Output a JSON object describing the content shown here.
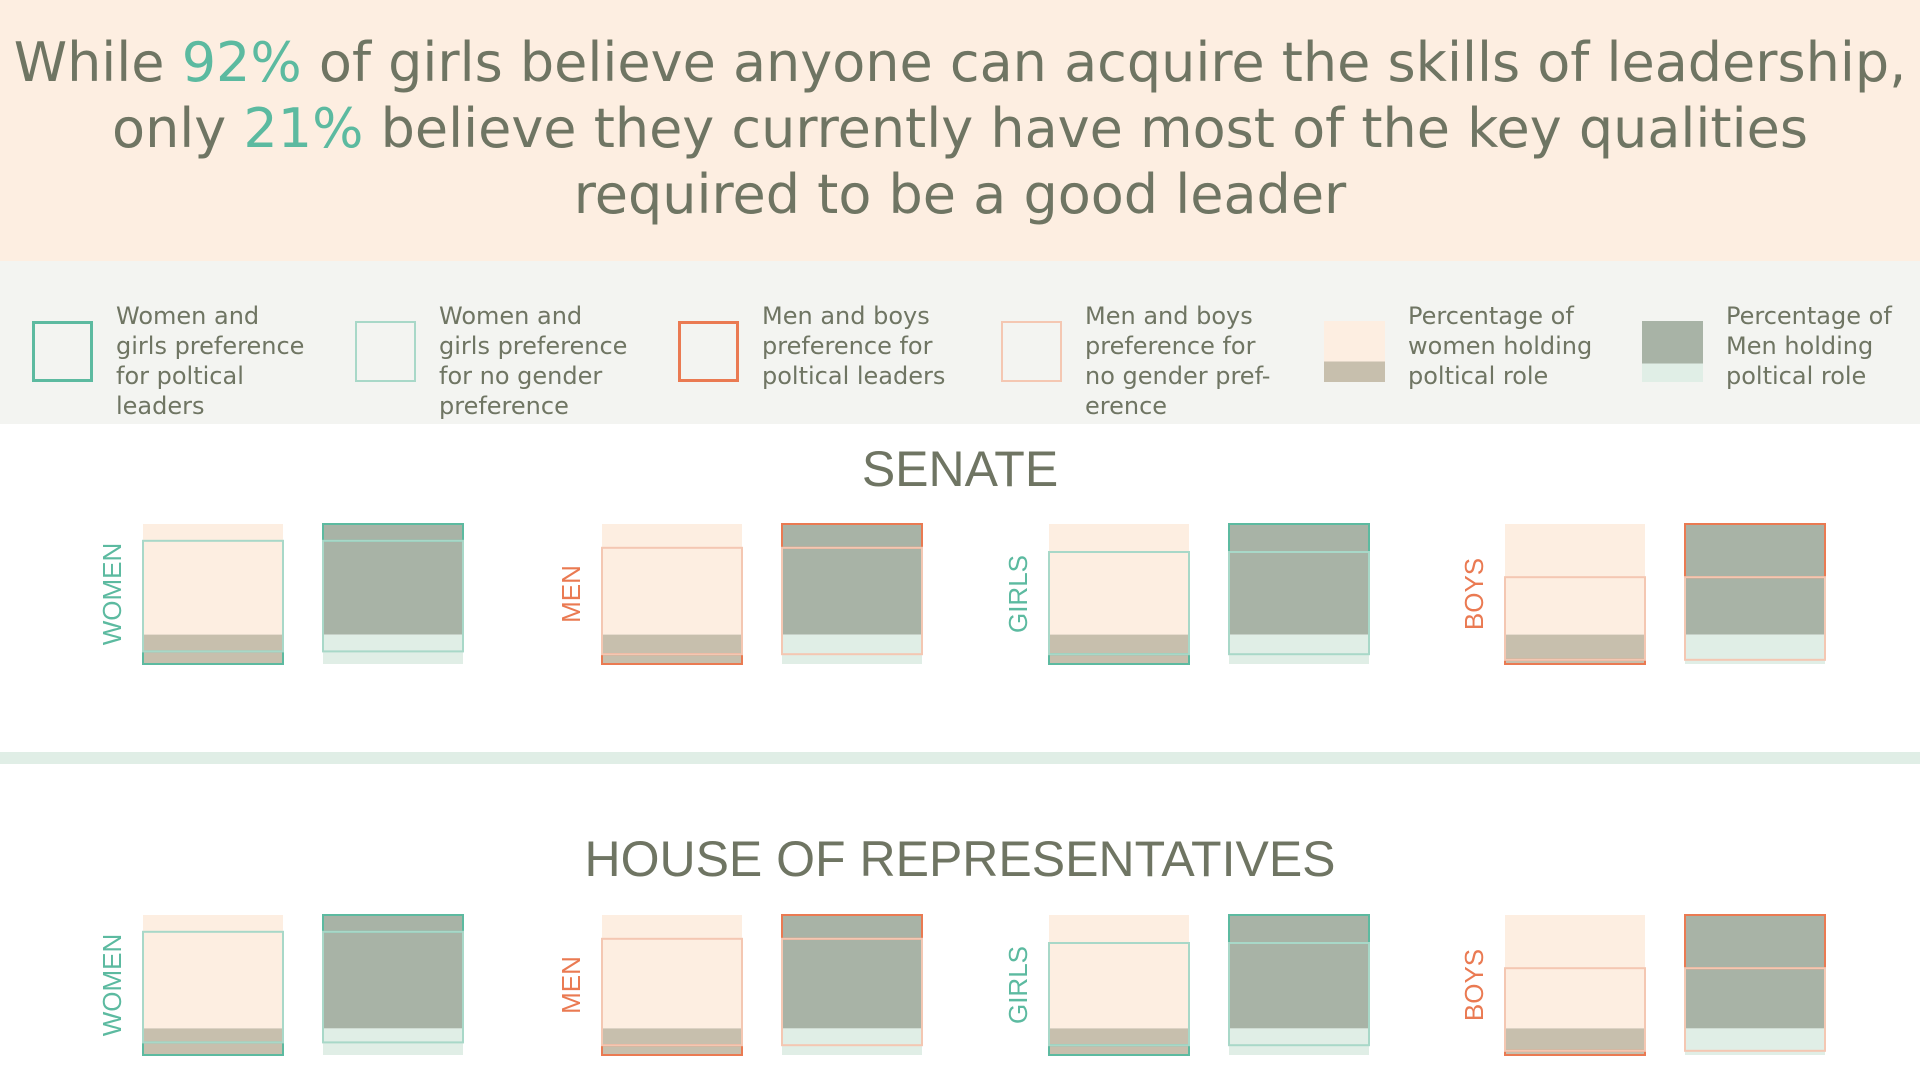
{
  "header": {
    "line1_before": "While ",
    "line1_highlight": "92%",
    "line1_after": " of girls believe anyone can acquire the skills of leadership,",
    "line2_before": "only ",
    "line2_highlight": "21%",
    "line2_after": " believe they currently have most of the key qualities",
    "line3": "required to be a good leader"
  },
  "colors": {
    "green_accent": "#5cbaa0",
    "orange_accent": "#ea7a52",
    "peach_fill": "#fdeee1",
    "taupe_fill": "#c7bfad",
    "gray_green_fill": "#a8b3a6",
    "light_green_fill": "#e0eee6",
    "text": "#6f7563"
  },
  "legend": [
    {
      "label": "Women and girls preference for poltical leaders",
      "lines": [
        "Women and",
        "girls preference",
        "for poltical",
        "leaders"
      ],
      "swatch": "women-preference-political"
    },
    {
      "label": "Women and girls preference for no gender preference",
      "lines": [
        "Women and",
        "girls preference",
        "for no gender",
        "preference"
      ],
      "swatch": "women-no-preference"
    },
    {
      "label": "Men and boys preference for poltical leaders",
      "lines": [
        "Men and boys",
        "preference for",
        "poltical leaders"
      ],
      "swatch": "men-preference-political"
    },
    {
      "label": "Men and boys preference for no gender preference",
      "lines": [
        "Men and boys",
        "preference for",
        "no gender pref-",
        "erence"
      ],
      "swatch": "men-no-preference"
    },
    {
      "label": "Percentage of women holding poltical role",
      "lines": [
        "Percentage of",
        "women holding",
        "poltical role"
      ],
      "swatch": "women-holding-role"
    },
    {
      "label": "Percentage of Men holding poltical role",
      "lines": [
        "Percentage of",
        "Men holding",
        "poltical role"
      ],
      "swatch": "men-holding-role"
    }
  ],
  "chart_data": [
    {
      "type": "bar",
      "title": "SENATE",
      "groups": [
        {
          "label": "WOMEN",
          "gender": "female",
          "women_preference_pct": 9,
          "no_preference_pct": 79,
          "men_preference_pct": 12,
          "women_role_pct": 21,
          "men_role_pct": 79
        },
        {
          "label": "MEN",
          "gender": "male",
          "women_preference_pct": 7,
          "no_preference_pct": 76,
          "men_preference_pct": 17,
          "women_role_pct": 21,
          "men_role_pct": 79
        },
        {
          "label": "GIRLS",
          "gender": "female",
          "women_preference_pct": 7,
          "no_preference_pct": 73,
          "men_preference_pct": 20,
          "women_role_pct": 21,
          "men_role_pct": 79
        },
        {
          "label": "BOYS",
          "gender": "male",
          "women_preference_pct": 3,
          "no_preference_pct": 59,
          "men_preference_pct": 38,
          "women_role_pct": 21,
          "men_role_pct": 79
        }
      ]
    },
    {
      "type": "bar",
      "title": "HOUSE OF REPRESENTATIVES",
      "groups": [
        {
          "label": "WOMEN",
          "gender": "female",
          "women_preference_pct": 9,
          "no_preference_pct": 79,
          "men_preference_pct": 12,
          "women_role_pct": 19,
          "men_role_pct": 81
        },
        {
          "label": "MEN",
          "gender": "male",
          "women_preference_pct": 7,
          "no_preference_pct": 76,
          "men_preference_pct": 17,
          "women_role_pct": 19,
          "men_role_pct": 81
        },
        {
          "label": "GIRLS",
          "gender": "female",
          "women_preference_pct": 7,
          "no_preference_pct": 73,
          "men_preference_pct": 20,
          "women_role_pct": 19,
          "men_role_pct": 81
        },
        {
          "label": "BOYS",
          "gender": "male",
          "women_preference_pct": 3,
          "no_preference_pct": 59,
          "men_preference_pct": 38,
          "women_role_pct": 19,
          "men_role_pct": 81
        }
      ]
    }
  ]
}
